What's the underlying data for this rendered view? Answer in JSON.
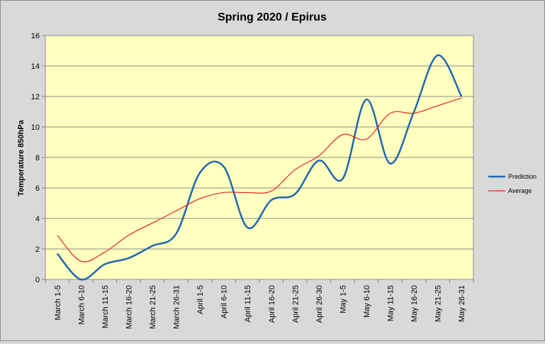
{
  "chart_data": {
    "type": "line",
    "title": "Spring 2020 / Epirus",
    "xlabel": "",
    "ylabel": "Temperature 850hPa",
    "ylim": [
      0,
      16
    ],
    "ytick_step": 2,
    "grid": true,
    "legend_position": "right",
    "categories": [
      "March 1-5",
      "March 6-10",
      "March 11-15",
      "March 16-20",
      "March 21-25",
      "March 26-31",
      "April 1-5",
      "April 6-10",
      "April 11-15",
      "April 16-20",
      "April 21-25",
      "April 26-30",
      "May 1-5",
      "May 6-10",
      "May 11-15",
      "May 16-20",
      "May 21-25",
      "May 26-31"
    ],
    "series": [
      {
        "name": "Prediction",
        "color": "#1f67b1",
        "values": [
          1.7,
          0.0,
          1.0,
          1.4,
          2.2,
          3.0,
          7.0,
          7.4,
          3.4,
          5.2,
          5.6,
          7.8,
          6.6,
          11.8,
          7.6,
          11.0,
          14.7,
          12.0
        ]
      },
      {
        "name": "Average",
        "color": "#e8231f",
        "values": [
          2.9,
          1.2,
          1.8,
          2.9,
          3.7,
          4.5,
          5.3,
          5.7,
          5.7,
          5.8,
          7.2,
          8.1,
          9.5,
          9.2,
          10.9,
          10.9,
          11.4,
          11.9
        ]
      }
    ],
    "colors": {
      "plot_background": "#ffffc0",
      "figure_background": "#d9d9d9",
      "grid": "#8c8c8c"
    }
  }
}
